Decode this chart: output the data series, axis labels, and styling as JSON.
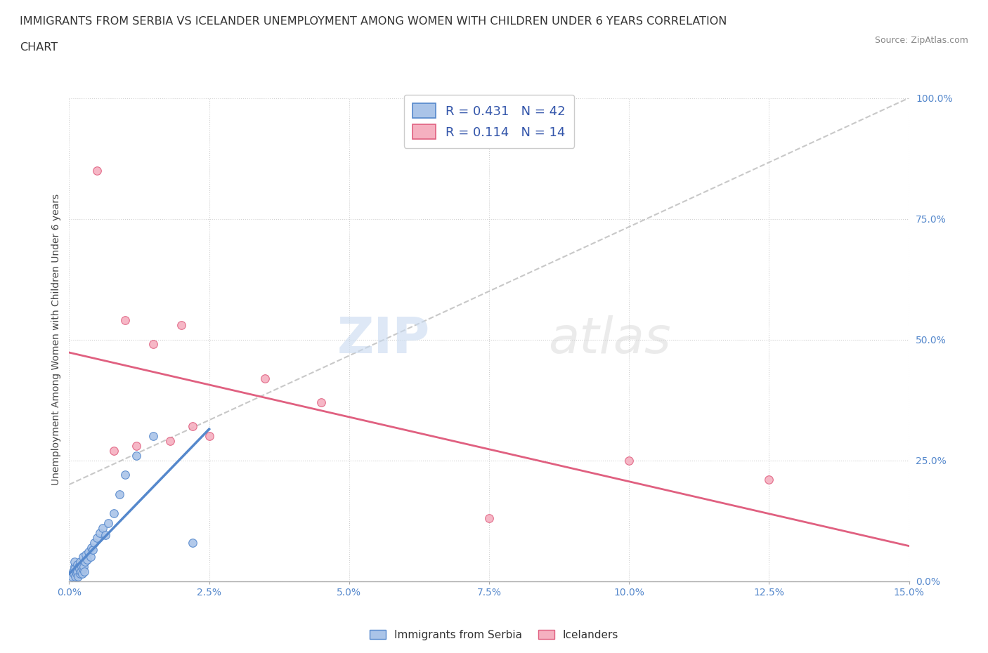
{
  "title_line1": "IMMIGRANTS FROM SERBIA VS ICELANDER UNEMPLOYMENT AMONG WOMEN WITH CHILDREN UNDER 6 YEARS CORRELATION",
  "title_line2": "CHART",
  "source": "Source: ZipAtlas.com",
  "ylabel": "Unemployment Among Women with Children Under 6 years",
  "xlim": [
    0.0,
    15.0
  ],
  "ylim": [
    0.0,
    100.0
  ],
  "x_ticks": [
    0.0,
    2.5,
    5.0,
    7.5,
    10.0,
    12.5,
    15.0
  ],
  "y_ticks_right": [
    0.0,
    25.0,
    50.0,
    75.0,
    100.0
  ],
  "grid_color": "#d0d0d0",
  "background_color": "#ffffff",
  "serbia_color": "#aac4e8",
  "icelander_color": "#f5b0c0",
  "serbia_line_color": "#5588cc",
  "icelander_line_color": "#e06080",
  "diagonal_color": "#bbbbbb",
  "R_serbia": 0.431,
  "N_serbia": 42,
  "R_icelander": 0.114,
  "N_icelander": 14,
  "serbia_x": [
    0.05,
    0.07,
    0.08,
    0.09,
    0.1,
    0.1,
    0.11,
    0.12,
    0.13,
    0.14,
    0.15,
    0.16,
    0.17,
    0.18,
    0.19,
    0.2,
    0.21,
    0.22,
    0.23,
    0.24,
    0.25,
    0.26,
    0.27,
    0.28,
    0.3,
    0.32,
    0.35,
    0.38,
    0.4,
    0.42,
    0.45,
    0.5,
    0.55,
    0.6,
    0.65,
    0.7,
    0.8,
    0.9,
    1.0,
    1.2,
    1.5,
    2.2
  ],
  "serbia_y": [
    1.0,
    2.0,
    1.5,
    3.0,
    2.5,
    4.0,
    1.0,
    2.0,
    1.5,
    3.5,
    2.0,
    1.0,
    3.0,
    2.5,
    1.5,
    4.0,
    2.0,
    3.0,
    1.5,
    2.5,
    5.0,
    3.0,
    2.0,
    4.0,
    5.5,
    4.5,
    6.0,
    5.0,
    7.0,
    6.5,
    8.0,
    9.0,
    10.0,
    11.0,
    9.5,
    12.0,
    14.0,
    18.0,
    22.0,
    26.0,
    30.0,
    8.0
  ],
  "icelander_x": [
    0.5,
    1.0,
    1.5,
    1.8,
    2.0,
    2.5,
    3.5,
    4.5,
    7.5,
    10.0,
    12.5,
    0.8,
    1.2,
    2.2
  ],
  "icelander_y": [
    85.0,
    54.0,
    49.0,
    29.0,
    53.0,
    30.0,
    42.0,
    37.0,
    13.0,
    25.0,
    21.0,
    27.0,
    28.0,
    32.0
  ],
  "watermark_zip": "ZIP",
  "watermark_atlas": "atlas",
  "legend_Serbia_label": "R = 0.431   N = 42",
  "legend_Icelander_label": "R = 0.114   N = 14",
  "bottom_legend_Serbia": "Immigrants from Serbia",
  "bottom_legend_Icelander": "Icelanders"
}
